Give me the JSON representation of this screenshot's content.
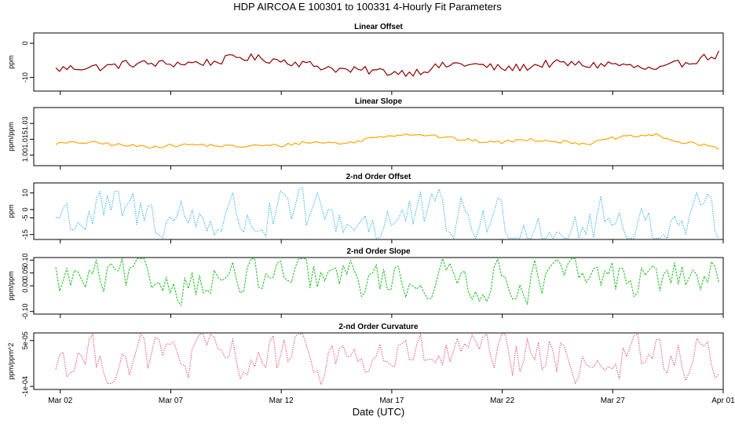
{
  "figure": {
    "title": "HDP   AIRCOA E   100301 to 100331   4-Hourly Fit Parameters",
    "xlabel": "Date (UTC)",
    "x_ticks": [
      "Mar 02",
      "Mar 07",
      "Mar 12",
      "Mar 17",
      "Mar 22",
      "Mar 27",
      "Apr 01"
    ]
  },
  "chart_data": [
    {
      "type": "line",
      "title": "Linear Offset",
      "ylabel": "ppm",
      "ylim": [
        -14,
        3
      ],
      "yticks": [
        0,
        -10
      ],
      "ytick_labels": [
        "0",
        "-10"
      ],
      "color": "#8b0000",
      "line_style": "solid",
      "amplitude": 1.2,
      "anchors": [
        [
          0,
          -8
        ],
        [
          0.5,
          -8
        ],
        [
          1,
          -7.5
        ],
        [
          2,
          -7
        ],
        [
          3,
          -7
        ],
        [
          4,
          -6
        ],
        [
          6,
          -6
        ],
        [
          8,
          -5.5
        ],
        [
          9,
          -4
        ],
        [
          10,
          -4.5
        ],
        [
          11,
          -5
        ],
        [
          12,
          -6
        ],
        [
          13,
          -7
        ],
        [
          14,
          -8
        ],
        [
          15,
          -8
        ],
        [
          16,
          -8.5
        ],
        [
          17,
          -8.5
        ],
        [
          18,
          -7
        ],
        [
          19,
          -6
        ],
        [
          20,
          -6.5
        ],
        [
          21,
          -7.5
        ],
        [
          22,
          -7
        ],
        [
          23,
          -6
        ],
        [
          24,
          -6
        ],
        [
          25,
          -6.5
        ],
        [
          26,
          -6
        ],
        [
          27,
          -7
        ],
        [
          28,
          -8
        ],
        [
          29,
          -6
        ],
        [
          30,
          -4.5
        ],
        [
          31,
          -3
        ]
      ]
    },
    {
      "type": "line",
      "title": "Linear Slope",
      "ylabel": "ppm/ppm",
      "ylim": [
        0.99,
        1.045
      ],
      "yticks": [
        1.0,
        1.015,
        1.03
      ],
      "ytick_labels": [
        "1.00",
        "1.015",
        "1.03"
      ],
      "color": "#ffa500",
      "line_style": "solid",
      "amplitude": 0.0015,
      "anchors": [
        [
          0,
          1.012
        ],
        [
          1,
          1.011
        ],
        [
          2,
          1.012
        ],
        [
          3,
          1.011
        ],
        [
          4,
          1.009
        ],
        [
          5,
          1.008
        ],
        [
          6,
          1.009
        ],
        [
          7,
          1.01
        ],
        [
          8,
          1.009
        ],
        [
          9,
          1.008
        ],
        [
          10,
          1.009
        ],
        [
          11,
          1.009
        ],
        [
          12,
          1.012
        ],
        [
          13,
          1.012
        ],
        [
          14,
          1.011
        ],
        [
          15,
          1.016
        ],
        [
          16,
          1.019
        ],
        [
          17,
          1.02
        ],
        [
          18,
          1.018
        ],
        [
          19,
          1.015
        ],
        [
          20,
          1.013
        ],
        [
          21,
          1.012
        ],
        [
          22,
          1.015
        ],
        [
          23,
          1.014
        ],
        [
          24,
          1.012
        ],
        [
          25,
          1.011
        ],
        [
          26,
          1.016
        ],
        [
          27,
          1.018
        ],
        [
          28,
          1.019
        ],
        [
          29,
          1.012
        ],
        [
          30,
          1.01
        ],
        [
          31,
          1.006
        ]
      ]
    },
    {
      "type": "line",
      "title": "2-nd Order Offset",
      "ylabel": "ppm",
      "ylim": [
        -18,
        16
      ],
      "yticks": [
        -15,
        -5,
        0,
        10
      ],
      "ytick_labels": [
        "-15",
        "-5",
        "0",
        "10"
      ],
      "color": "#1ca9e6",
      "line_style": "dotted",
      "amplitude": 13,
      "anchors": [
        [
          0,
          -7
        ],
        [
          1,
          -3
        ],
        [
          31,
          -10
        ]
      ]
    },
    {
      "type": "line",
      "title": "2-nd Order Slope",
      "ylabel": "ppm/ppm",
      "ylim": [
        -0.11,
        0.11
      ],
      "yticks": [
        -0.1,
        0.0,
        0.05,
        0.1
      ],
      "ytick_labels": [
        "-0.10",
        "0.00",
        "0.05",
        "0.10"
      ],
      "color": "#22c022",
      "line_style": "dashed",
      "amplitude": 0.065,
      "anchors": [
        [
          0,
          0.03
        ],
        [
          1,
          0.02
        ],
        [
          31,
          0.03
        ]
      ]
    },
    {
      "type": "line",
      "title": "2-nd Order Curvature",
      "ylabel": "ppm/ppm^2",
      "ylim": [
        -0.00011,
        7.5e-05
      ],
      "yticks": [
        -0.0001,
        5e-05
      ],
      "ytick_labels": [
        "-1e-04",
        "5e-05"
      ],
      "color": "#e0406a",
      "line_style": "dotted",
      "amplitude": 6.5e-05,
      "anchors": [
        [
          0,
          -5e-06
        ],
        [
          31,
          -1e-05
        ]
      ]
    }
  ]
}
